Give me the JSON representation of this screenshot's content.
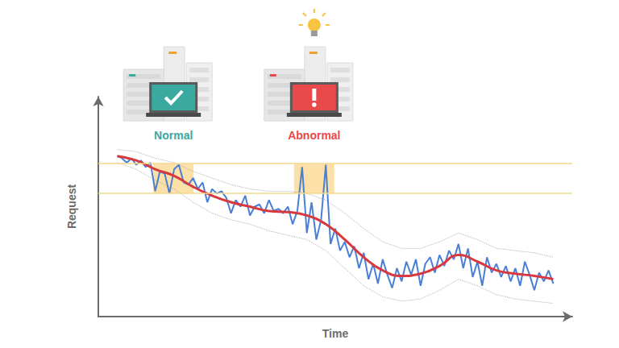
{
  "chart_data": {
    "type": "line",
    "x_label": "Time",
    "y_label": "Request",
    "xlim": [
      0,
      100
    ],
    "ylim": [
      0,
      100
    ],
    "tick_labels": false,
    "grid": false,
    "series": [
      {
        "color": "#4a7fd6",
        "line_style": "solid",
        "marker": "none",
        "x": [
          4,
          5,
          6,
          7,
          8,
          9,
          10,
          11,
          12,
          13,
          14,
          15,
          16,
          17,
          18,
          19,
          20,
          21,
          22,
          23,
          24,
          25,
          26,
          27,
          28,
          29,
          30,
          31,
          32,
          33,
          34,
          35,
          36,
          37,
          38,
          39,
          40,
          41,
          42,
          43,
          44,
          45,
          46,
          47,
          48,
          49,
          50,
          51,
          52,
          53,
          54,
          55,
          56,
          57,
          58,
          59,
          60,
          61,
          62,
          63,
          64,
          65,
          66,
          67,
          68,
          69,
          70,
          71,
          72,
          73,
          74,
          75,
          76,
          77,
          78,
          79,
          80,
          81,
          82,
          83,
          84,
          85,
          86,
          87,
          88,
          89,
          90,
          91,
          92,
          93,
          94,
          95,
          96
        ],
        "values": [
          73,
          72,
          70,
          72,
          69,
          71,
          68,
          70,
          57,
          66,
          65,
          56,
          67,
          69,
          61,
          60,
          63,
          58,
          61,
          52,
          58,
          56,
          57,
          54,
          47,
          53,
          50,
          55,
          46,
          50,
          51,
          47,
          53,
          48,
          49,
          47,
          50,
          42,
          48,
          68,
          38,
          52,
          35,
          44,
          69,
          33,
          40,
          30,
          34,
          27,
          32,
          22,
          29,
          17,
          24,
          15,
          26,
          19,
          13,
          22,
          16,
          25,
          19,
          26,
          14,
          24,
          27,
          20,
          28,
          23,
          30,
          26,
          33,
          22,
          31,
          18,
          25,
          14,
          27,
          20,
          24,
          18,
          23,
          16,
          22,
          14,
          25,
          19,
          12,
          20,
          16,
          21,
          15
        ]
      },
      {
        "color": "#d8393f",
        "line_style": "smooth",
        "marker": "none",
        "x": [
          4,
          8,
          12,
          16,
          20,
          24,
          28,
          32,
          36,
          40,
          44,
          48,
          52,
          56,
          60,
          64,
          68,
          72,
          76,
          80,
          84,
          88,
          92,
          96
        ],
        "values": [
          73,
          71,
          67,
          64,
          59,
          55,
          52,
          50,
          48,
          47.5,
          46,
          42,
          35,
          27,
          21,
          18.5,
          19.5,
          23,
          28,
          25,
          21,
          19.5,
          18.5,
          17
        ]
      },
      {
        "color": "#b0b0b0",
        "line_style": "dotted",
        "marker": "none",
        "x": [
          4,
          8,
          12,
          16,
          20,
          24,
          28,
          32,
          36,
          40,
          44,
          48,
          52,
          56,
          60,
          64,
          68,
          72,
          76,
          80,
          84,
          88,
          92,
          96
        ],
        "values": [
          76,
          75,
          72,
          70,
          66,
          63,
          60,
          58,
          57,
          57,
          56,
          53,
          47,
          40,
          34,
          31,
          31,
          34,
          38,
          35,
          31,
          30,
          29,
          27
        ]
      },
      {
        "color": "#b0b0b0",
        "line_style": "dotted",
        "marker": "none",
        "x": [
          4,
          8,
          12,
          16,
          20,
          24,
          28,
          32,
          36,
          40,
          44,
          48,
          52,
          56,
          60,
          64,
          68,
          72,
          76,
          80,
          84,
          88,
          92,
          96
        ],
        "values": [
          70,
          67,
          62,
          58,
          52,
          47,
          44,
          42,
          39,
          37,
          35,
          30,
          22,
          14,
          9,
          7,
          8,
          12,
          17,
          14,
          10,
          8,
          7,
          6
        ]
      }
    ],
    "reference_lines": {
      "values": [
        56,
        69.6
      ],
      "color": "#f5d78e"
    },
    "highlight_regions": {
      "color": "#f9d58a",
      "regions": [
        {
          "x": [
            11.6,
            20.1
          ],
          "label": "Normal",
          "color": "#3aa9a0",
          "marker": "check"
        },
        {
          "x": [
            41.3,
            49.8
          ],
          "label": "Abnormal",
          "color": "#e8494b",
          "marker": "alert"
        }
      ]
    }
  }
}
